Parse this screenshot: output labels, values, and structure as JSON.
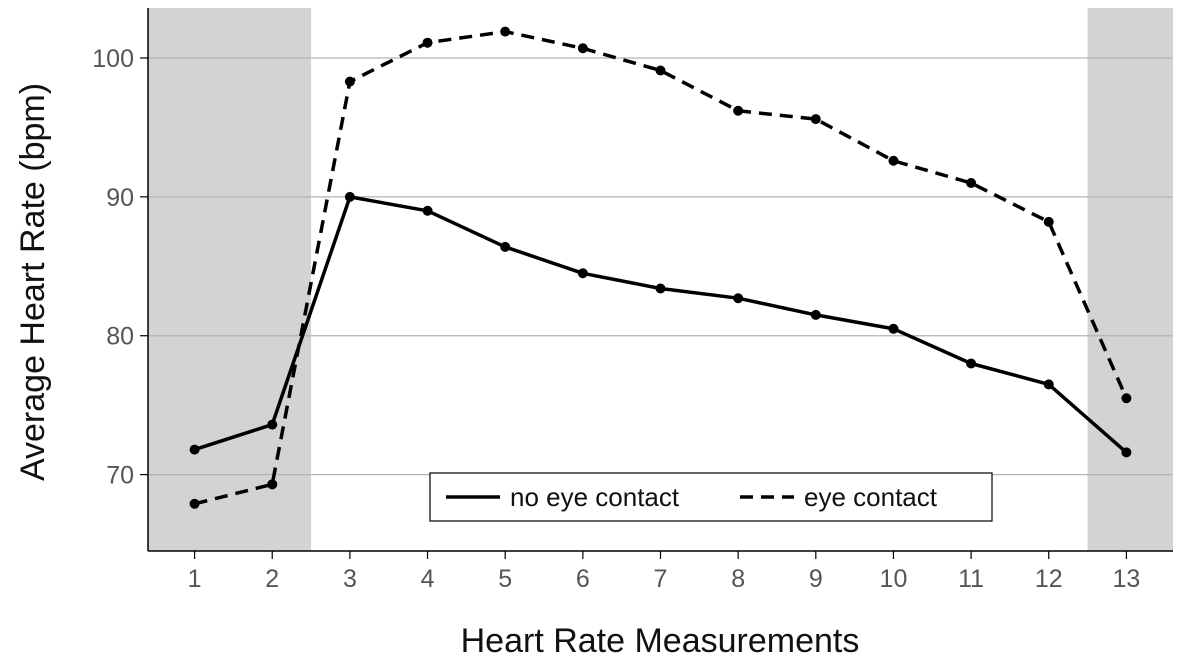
{
  "chart_data": {
    "type": "line",
    "title": "",
    "xlabel": "Heart Rate Measurements",
    "ylabel": "Average Heart Rate (bpm)",
    "x": [
      1,
      2,
      3,
      4,
      5,
      6,
      7,
      8,
      9,
      10,
      11,
      12,
      13
    ],
    "x_tick_labels": [
      "1",
      "2",
      "3",
      "4",
      "5",
      "6",
      "7",
      "8",
      "9",
      "10",
      "11",
      "12",
      "13"
    ],
    "xlim": [
      0.4,
      13.6
    ],
    "ylim": [
      64.5,
      103.6
    ],
    "y_ticks": [
      70,
      80,
      90,
      100
    ],
    "y_tick_labels": [
      "70",
      "80",
      "90",
      "100"
    ],
    "grid": "horizontal",
    "shaded_regions": [
      {
        "x_start": 0.4,
        "x_end": 2.5,
        "color": "#d3d3d3"
      },
      {
        "x_start": 12.5,
        "x_end": 13.6,
        "color": "#d3d3d3"
      }
    ],
    "series": [
      {
        "name": "no eye contact",
        "line_style": "solid",
        "color": "#000000",
        "values": [
          71.8,
          73.6,
          90.0,
          89.0,
          86.4,
          84.5,
          83.4,
          82.7,
          81.5,
          80.5,
          78.0,
          76.5,
          71.6
        ]
      },
      {
        "name": "eye contact",
        "line_style": "dashed",
        "color": "#000000",
        "values": [
          67.9,
          69.3,
          98.3,
          101.1,
          101.9,
          100.7,
          99.1,
          96.2,
          95.6,
          92.6,
          91.0,
          88.2,
          75.5
        ]
      }
    ],
    "legend": {
      "placement": "bottom-center",
      "entries": [
        "no eye contact",
        "eye contact"
      ]
    }
  },
  "colors": {
    "background": "#ffffff",
    "shade": "#d3d3d3",
    "grid": "#b3b3b3",
    "axis": "#000000",
    "tick_text": "#555555"
  }
}
